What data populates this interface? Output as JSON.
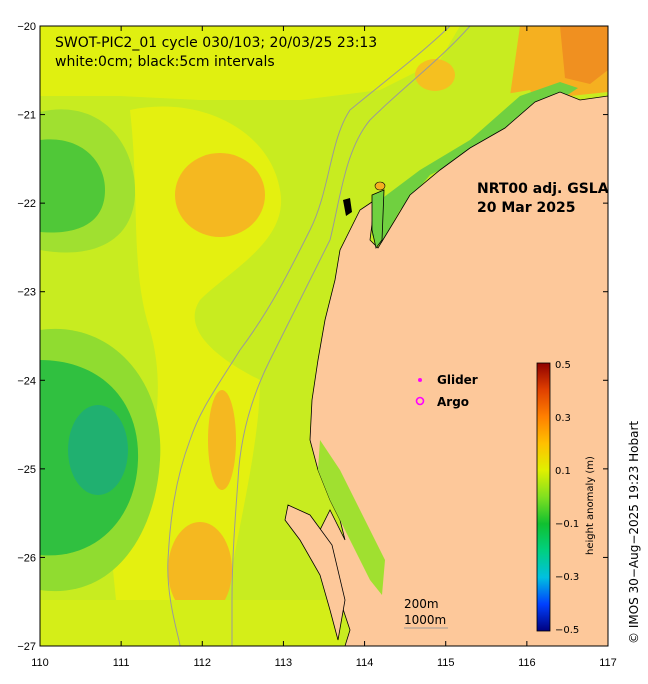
{
  "title": {
    "line1": "SWOT-PIC2_01 cycle 030/103; 20/03/25 23:13",
    "line2": "white:0cm; black:5cm intervals"
  },
  "product": {
    "line1": "NRT00 adj. GSLA",
    "line2": "20 Mar 2025"
  },
  "legend": {
    "glider_label": "Glider",
    "argo_label": "Argo",
    "glider_color": "#ff00ff",
    "argo_color": "#ff00ff"
  },
  "colorbar": {
    "title": "height anomaly (m)",
    "range": [
      -0.5,
      0.5
    ],
    "ticks": [
      "0.5",
      "0.3",
      "0.1",
      "−0.1",
      "−0.3",
      "−0.5"
    ],
    "colors": [
      "#00007f",
      "#0040ff",
      "#00c0e0",
      "#00d080",
      "#10c030",
      "#80e020",
      "#e0f000",
      "#ffc000",
      "#ff8000",
      "#e04000",
      "#8f0000"
    ]
  },
  "scale_bar": {
    "label1": "200m",
    "label2": "1000m"
  },
  "credit": "©  IMOS 30−Aug−2025 19:23 Hobart",
  "axes": {
    "x_ticks": [
      "110",
      "111",
      "112",
      "113",
      "114",
      "115",
      "116",
      "117"
    ],
    "y_ticks": [
      "−20",
      "−21",
      "−22",
      "−23",
      "−24",
      "−25",
      "−26",
      "−27"
    ],
    "xlim": [
      110,
      117
    ],
    "ylim": [
      -27,
      -20
    ]
  },
  "colors": {
    "land": "#fdc89a",
    "ocean_base": "#c8ec20",
    "coastline": "#000000",
    "isobath": "#9a9a9a"
  }
}
